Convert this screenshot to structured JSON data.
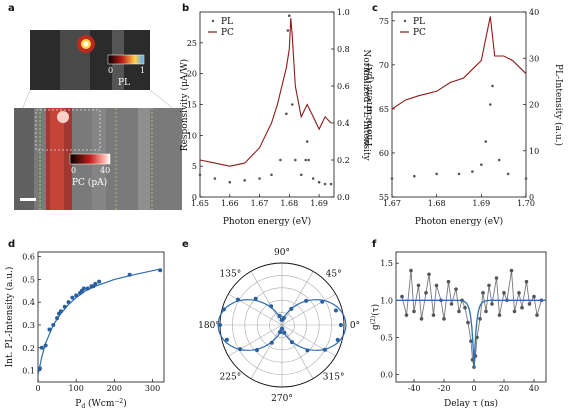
{
  "colors": {
    "pl": "#555555",
    "pc": "#8b1a1a",
    "fit": "#2c6db3",
    "points": "#2a5f9e"
  },
  "panels": {
    "a": {
      "label": "a",
      "pl_colorbar": {
        "ticks": [
          "0",
          "1"
        ],
        "label": "PL"
      },
      "pc_colorbar": {
        "ticks": [
          "0",
          "40"
        ],
        "label": "PC (pA)"
      }
    },
    "b": {
      "label": "b"
    },
    "c": {
      "label": "c"
    },
    "d": {
      "label": "d"
    },
    "e": {
      "label": "e"
    },
    "f": {
      "label": "f"
    }
  },
  "chart_data": [
    {
      "panel": "b",
      "type": "line",
      "xlabel": "Photon energy (eV)",
      "ylabel": "Responsivity (μA/W)",
      "y2label": "Normalized PL-Intensity",
      "xlim": [
        1.65,
        1.695
      ],
      "ylim": [
        0,
        30
      ],
      "y2lim": [
        0,
        1.0
      ],
      "xticks": [
        "1.65",
        "1.66",
        "1.67",
        "1.68",
        "1.69"
      ],
      "yticks": [
        "0",
        "5",
        "10",
        "15",
        "20",
        "25"
      ],
      "y2ticks": [
        "0.0",
        "0.2",
        "0.4",
        "0.6",
        "0.8",
        "1.0"
      ],
      "legend": [
        "PL",
        "PC"
      ],
      "legend_position": "top-left",
      "series": [
        {
          "name": "PC",
          "axis": "left",
          "x": [
            1.65,
            1.655,
            1.66,
            1.665,
            1.67,
            1.672,
            1.674,
            1.676,
            1.678,
            1.679,
            1.68,
            1.6805,
            1.681,
            1.682,
            1.684,
            1.686,
            1.688,
            1.69,
            1.692,
            1.694
          ],
          "y": [
            6,
            5.5,
            5,
            5.5,
            8,
            10,
            12,
            15,
            19,
            21,
            24,
            29,
            26,
            18,
            13,
            15,
            13,
            11,
            13,
            12
          ]
        },
        {
          "name": "PL",
          "axis": "right",
          "x": [
            1.65,
            1.655,
            1.66,
            1.665,
            1.67,
            1.674,
            1.677,
            1.679,
            1.6795,
            1.68,
            1.681,
            1.682,
            1.684,
            1.6855,
            1.686,
            1.6865,
            1.688,
            1.69,
            1.692,
            1.694
          ],
          "y": [
            0.12,
            0.1,
            0.08,
            0.09,
            0.1,
            0.12,
            0.2,
            0.45,
            0.9,
            0.98,
            0.5,
            0.2,
            0.12,
            0.2,
            0.3,
            0.2,
            0.1,
            0.08,
            0.07,
            0.07
          ]
        }
      ]
    },
    {
      "panel": "c",
      "type": "line",
      "xlabel": "Photon energy (eV)",
      "ylabel": "Photocurrent (pA)",
      "y2label": "PL-Intensity (a.u.)",
      "xlim": [
        1.67,
        1.7
      ],
      "ylim": [
        55,
        76
      ],
      "y2lim": [
        0,
        40
      ],
      "xticks": [
        "1.67",
        "1.68",
        "1.69",
        "1.70"
      ],
      "yticks": [
        "55",
        "60",
        "65",
        "70",
        "75"
      ],
      "y2ticks": [
        "0",
        "10",
        "20",
        "30",
        "40"
      ],
      "legend": [
        "PL",
        "PC"
      ],
      "legend_position": "top-left",
      "series": [
        {
          "name": "PC",
          "axis": "left",
          "x": [
            1.67,
            1.673,
            1.676,
            1.68,
            1.683,
            1.686,
            1.688,
            1.69,
            1.691,
            1.692,
            1.693,
            1.695,
            1.697,
            1.7
          ],
          "y": [
            65,
            66,
            66.5,
            67,
            68,
            68.5,
            69.5,
            70.5,
            73,
            75.5,
            71,
            71,
            70.5,
            69
          ]
        },
        {
          "name": "PL",
          "axis": "right",
          "x": [
            1.67,
            1.675,
            1.68,
            1.685,
            1.688,
            1.69,
            1.691,
            1.692,
            1.6925,
            1.694,
            1.696,
            1.7
          ],
          "y": [
            4,
            4.5,
            5,
            5,
            5.5,
            7,
            12,
            20,
            24,
            8,
            5,
            4
          ]
        }
      ]
    },
    {
      "panel": "d",
      "type": "scatter",
      "xlabel": "Pd (Wcm⁻²)",
      "xlabel_main": "P",
      "xlabel_sub": "d",
      "xlabel_unit": " (Wcm",
      "xlabel_sup": "−2",
      "xlabel_end": ")",
      "ylabel": "Int. PL-Intensity (a.u.)",
      "xlim": [
        0,
        330
      ],
      "ylim": [
        0.05,
        0.62
      ],
      "xticks": [
        "0",
        "100",
        "200",
        "300"
      ],
      "yticks": [
        "0.1",
        "0.2",
        "0.3",
        "0.4",
        "0.5",
        "0.6"
      ],
      "series": [
        {
          "name": "data",
          "x": [
            5,
            10,
            20,
            30,
            40,
            50,
            55,
            60,
            70,
            80,
            90,
            100,
            110,
            115,
            120,
            130,
            140,
            145,
            150,
            160,
            240,
            320
          ],
          "y": [
            0.11,
            0.2,
            0.21,
            0.28,
            0.3,
            0.33,
            0.35,
            0.36,
            0.38,
            0.4,
            0.42,
            0.43,
            0.44,
            0.45,
            0.46,
            0.46,
            0.47,
            0.47,
            0.48,
            0.49,
            0.52,
            0.54
          ]
        },
        {
          "name": "fit",
          "x": [
            0,
            10,
            20,
            40,
            60,
            80,
            100,
            125,
            150,
            200,
            250,
            320
          ],
          "y": [
            0.08,
            0.16,
            0.22,
            0.3,
            0.35,
            0.39,
            0.42,
            0.45,
            0.47,
            0.5,
            0.52,
            0.545
          ]
        }
      ]
    },
    {
      "panel": "e",
      "type": "scatter",
      "subtype": "polar",
      "angle_labels": [
        "0°",
        "45°",
        "90°",
        "135°",
        "180°",
        "225°",
        "270°",
        "315°"
      ],
      "r_max": 1.0,
      "series": [
        {
          "name": "data",
          "angle_deg": [
            0,
            15,
            30,
            45,
            60,
            75,
            90,
            105,
            120,
            135,
            150,
            165,
            180,
            195,
            210,
            225,
            240,
            255,
            270,
            285,
            300,
            315,
            330,
            345
          ],
          "r": [
            0.95,
            0.9,
            0.75,
            0.55,
            0.3,
            0.12,
            0.08,
            0.15,
            0.35,
            0.6,
            0.82,
            0.97,
            1.0,
            0.92,
            0.78,
            0.57,
            0.33,
            0.12,
            0.06,
            0.13,
            0.32,
            0.58,
            0.8,
            0.93
          ]
        },
        {
          "name": "fit",
          "model": "cos^2",
          "amplitude": 0.97,
          "offset": 0.06
        }
      ]
    },
    {
      "panel": "f",
      "type": "line",
      "xlabel": "Delay τ (ns)",
      "ylabel": "g⁽²⁾(τ)",
      "ylabel_main": "g",
      "ylabel_sup": "(2)",
      "ylabel_end": "(τ)",
      "xlim": [
        -52,
        48
      ],
      "ylim": [
        -0.1,
        1.65
      ],
      "xticks": [
        "-40",
        "-20",
        "0",
        "20",
        "40"
      ],
      "yticks": [
        "0.0",
        "0.5",
        "1.0",
        "1.5"
      ],
      "series": [
        {
          "name": "data",
          "x": [
            -48,
            -45,
            -42,
            -40,
            -37,
            -35,
            -32,
            -30,
            -27,
            -25,
            -22,
            -20,
            -17,
            -15,
            -12,
            -10,
            -8,
            -6,
            -4,
            -2,
            -1,
            0,
            1,
            2,
            4,
            6,
            8,
            10,
            12,
            15,
            17,
            20,
            22,
            25,
            27,
            30,
            32,
            35,
            37,
            40,
            42,
            45
          ],
          "y": [
            1.05,
            0.8,
            1.4,
            0.85,
            1.2,
            0.75,
            1.1,
            1.35,
            0.8,
            1.2,
            1.0,
            0.75,
            1.25,
            0.95,
            1.15,
            0.85,
            1.0,
            0.9,
            0.7,
            0.45,
            0.2,
            0.1,
            0.25,
            0.5,
            0.75,
            1.1,
            0.85,
            1.2,
            0.95,
            1.3,
            0.8,
            1.1,
            1.0,
            1.4,
            0.85,
            1.1,
            0.9,
            1.25,
            0.95,
            1.05,
            0.8,
            1.0
          ]
        },
        {
          "name": "fit",
          "model": "1 - a*exp(-|t|/t0)",
          "a": 0.92,
          "t0": 1.6
        }
      ]
    }
  ]
}
